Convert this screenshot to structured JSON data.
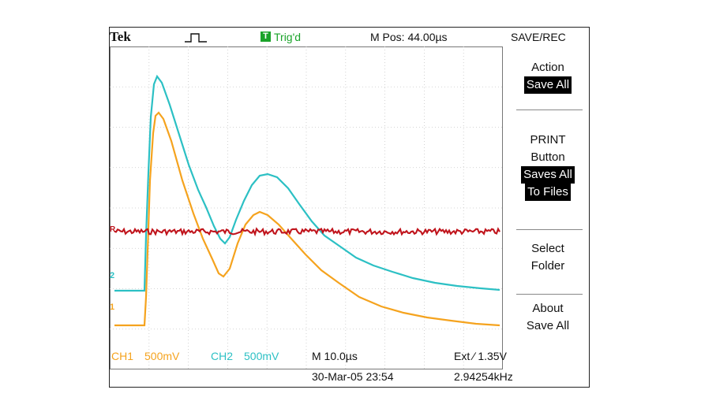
{
  "header": {
    "brand": "Tek",
    "trigger_badge": "T",
    "trigger_status": "Trig'd",
    "m_pos": "M Pos: 44.00µs",
    "menu_title": "SAVE/REC"
  },
  "menu": {
    "action_label": "Action",
    "action_value": "Save All",
    "print_label_1": "PRINT",
    "print_label_2": "Button",
    "print_value_1": "Saves All",
    "print_value_2": "To Files",
    "select_1": "Select",
    "select_2": "Folder",
    "about_1": "About",
    "about_2": "Save All"
  },
  "markers": {
    "ch1": "1",
    "ch2": "2",
    "ref": "R"
  },
  "footer": {
    "ch1_label": "CH1",
    "ch1_scale": "500mV",
    "ch2_label": "CH2",
    "ch2_scale": "500mV",
    "timebase": "M 10.0µs",
    "trigger_source": "Ext ∕ 1.35V",
    "datetime": "30-Mar-05 23:54",
    "frequency": "2.94254kHz"
  },
  "colors": {
    "ch1": "#f5a31e",
    "ch2": "#2cc0c4",
    "ref": "#c0141c",
    "trigger": "#1aa32a"
  }
}
